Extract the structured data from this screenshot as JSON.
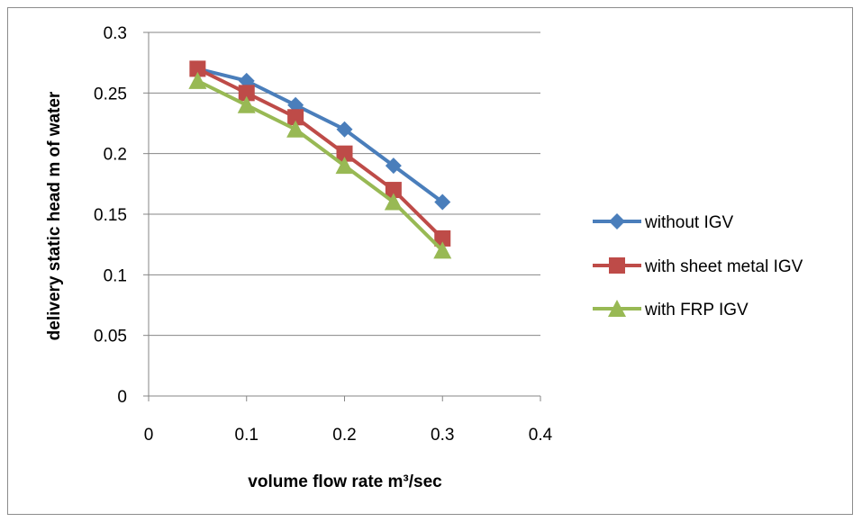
{
  "chart_data": {
    "type": "line",
    "title": "",
    "xlabel": "volume flow rate m³/sec",
    "ylabel": "delivery static head m of water",
    "xlim": [
      0,
      0.4
    ],
    "ylim": [
      0,
      0.3
    ],
    "x_ticks": [
      "0",
      "0.1",
      "0.2",
      "0.3",
      "0.4"
    ],
    "y_ticks": [
      "0",
      "0.05",
      "0.1",
      "0.15",
      "0.2",
      "0.25",
      "0.3"
    ],
    "grid": "horizontal",
    "legend_position": "right",
    "series": [
      {
        "name": "without IGV",
        "color": "#4a7ebb",
        "marker": "diamond",
        "x": [
          0.05,
          0.1,
          0.15,
          0.2,
          0.25,
          0.3
        ],
        "y": [
          0.27,
          0.26,
          0.24,
          0.22,
          0.19,
          0.16
        ]
      },
      {
        "name": "with sheet metal IGV",
        "color": "#be4b48",
        "marker": "square",
        "x": [
          0.05,
          0.1,
          0.15,
          0.2,
          0.25,
          0.3
        ],
        "y": [
          0.27,
          0.25,
          0.23,
          0.2,
          0.17,
          0.13
        ]
      },
      {
        "name": "with FRP IGV",
        "color": "#98b954",
        "marker": "triangle",
        "x": [
          0.05,
          0.1,
          0.15,
          0.2,
          0.25,
          0.3
        ],
        "y": [
          0.26,
          0.24,
          0.22,
          0.19,
          0.16,
          0.12
        ]
      }
    ]
  }
}
